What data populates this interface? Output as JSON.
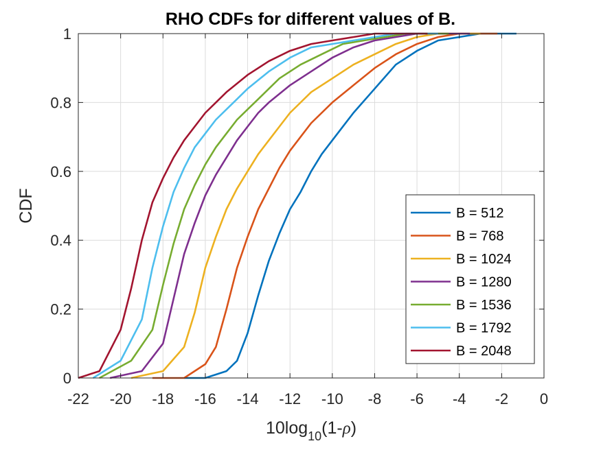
{
  "chart_data": {
    "type": "line",
    "title": "RHO CDFs for different values of B.",
    "xlabel_parts": {
      "base": "10log",
      "subscript": "10",
      "tail_open": "(1-",
      "symbol": "ρ",
      "tail_close": ")"
    },
    "ylabel": "CDF",
    "xlim": [
      -22,
      0
    ],
    "ylim": [
      0,
      1
    ],
    "xticks": [
      -22,
      -20,
      -18,
      -16,
      -14,
      -12,
      -10,
      -8,
      -6,
      -4,
      -2,
      0
    ],
    "yticks": [
      0,
      0.2,
      0.4,
      0.6,
      0.8,
      1
    ],
    "xtick_labels": [
      "-22",
      "-20",
      "-18",
      "-16",
      "-14",
      "-12",
      "-10",
      "-8",
      "-6",
      "-4",
      "-2",
      "0"
    ],
    "ytick_labels": [
      "0",
      "0.2",
      "0.4",
      "0.6",
      "0.8",
      "1"
    ],
    "grid": true,
    "legend_position": "lower-right",
    "series": [
      {
        "name": "B = 512",
        "color": "#0072BD",
        "x": [
          -17.0,
          -16.0,
          -15.0,
          -14.5,
          -14.0,
          -13.5,
          -13.0,
          -12.5,
          -12.0,
          -11.5,
          -11.0,
          -10.5,
          -10.0,
          -9.0,
          -8.0,
          -7.0,
          -6.0,
          -5.0,
          -4.0,
          -3.0,
          -2.0,
          -1.3
        ],
        "y": [
          0.0,
          0.0,
          0.02,
          0.05,
          0.13,
          0.24,
          0.34,
          0.42,
          0.49,
          0.54,
          0.6,
          0.65,
          0.69,
          0.77,
          0.84,
          0.91,
          0.95,
          0.98,
          0.99,
          1.0,
          1.0,
          1.0
        ]
      },
      {
        "name": "B = 768",
        "color": "#D95319",
        "x": [
          -18.5,
          -17.0,
          -16.0,
          -15.5,
          -15.0,
          -14.5,
          -14.0,
          -13.5,
          -13.0,
          -12.5,
          -12.0,
          -11.5,
          -11.0,
          -10.0,
          -9.0,
          -8.0,
          -7.0,
          -6.0,
          -5.0,
          -4.0,
          -3.0,
          -2.2
        ],
        "y": [
          0.0,
          0.0,
          0.04,
          0.09,
          0.2,
          0.32,
          0.41,
          0.49,
          0.55,
          0.61,
          0.66,
          0.7,
          0.74,
          0.8,
          0.85,
          0.9,
          0.94,
          0.97,
          0.99,
          1.0,
          1.0,
          1.0
        ]
      },
      {
        "name": "B = 1024",
        "color": "#EDB120",
        "x": [
          -19.5,
          -18.0,
          -17.0,
          -16.5,
          -16.0,
          -15.5,
          -15.0,
          -14.5,
          -14.0,
          -13.5,
          -13.0,
          -12.5,
          -12.0,
          -11.0,
          -10.0,
          -9.0,
          -8.0,
          -7.0,
          -6.0,
          -5.0,
          -4.0,
          -3.0
        ],
        "y": [
          0.0,
          0.02,
          0.09,
          0.19,
          0.32,
          0.41,
          0.49,
          0.55,
          0.6,
          0.65,
          0.69,
          0.73,
          0.77,
          0.83,
          0.87,
          0.91,
          0.94,
          0.97,
          0.99,
          1.0,
          1.0,
          1.0
        ]
      },
      {
        "name": "B = 1280",
        "color": "#7E2F8E",
        "x": [
          -20.5,
          -19.0,
          -18.0,
          -17.5,
          -17.0,
          -16.5,
          -16.0,
          -15.5,
          -15.0,
          -14.5,
          -14.0,
          -13.5,
          -13.0,
          -12.0,
          -11.0,
          -10.0,
          -9.0,
          -8.0,
          -7.0,
          -6.0,
          -5.0,
          -3.5
        ],
        "y": [
          0.0,
          0.02,
          0.1,
          0.23,
          0.36,
          0.45,
          0.53,
          0.59,
          0.64,
          0.69,
          0.73,
          0.77,
          0.8,
          0.85,
          0.89,
          0.93,
          0.96,
          0.98,
          0.99,
          1.0,
          1.0,
          1.0
        ]
      },
      {
        "name": "B = 1536",
        "color": "#77AC30",
        "x": [
          -21.0,
          -19.5,
          -18.5,
          -18.0,
          -17.5,
          -17.0,
          -16.5,
          -16.0,
          -15.5,
          -15.0,
          -14.5,
          -14.0,
          -13.5,
          -12.5,
          -11.5,
          -10.5,
          -9.5,
          -8.5,
          -7.5,
          -6.5,
          -5.5,
          -4.5
        ],
        "y": [
          0.0,
          0.05,
          0.14,
          0.27,
          0.39,
          0.49,
          0.56,
          0.62,
          0.67,
          0.71,
          0.75,
          0.78,
          0.81,
          0.87,
          0.91,
          0.94,
          0.97,
          0.98,
          0.99,
          1.0,
          1.0,
          1.0
        ]
      },
      {
        "name": "B = 1792",
        "color": "#4DBEEE",
        "x": [
          -21.3,
          -20.0,
          -19.0,
          -18.5,
          -18.0,
          -17.5,
          -17.0,
          -16.5,
          -16.0,
          -15.5,
          -15.0,
          -14.5,
          -14.0,
          -13.0,
          -12.0,
          -11.0,
          -10.0,
          -9.0,
          -8.0,
          -7.0,
          -6.0,
          -5.0
        ],
        "y": [
          0.0,
          0.05,
          0.17,
          0.32,
          0.44,
          0.54,
          0.61,
          0.67,
          0.71,
          0.75,
          0.78,
          0.81,
          0.84,
          0.89,
          0.93,
          0.96,
          0.97,
          0.98,
          0.99,
          1.0,
          1.0,
          1.0
        ]
      },
      {
        "name": "B = 2048",
        "color": "#A2142F",
        "x": [
          -22.0,
          -21.0,
          -20.0,
          -19.5,
          -19.0,
          -18.5,
          -18.0,
          -17.5,
          -17.0,
          -16.5,
          -16.0,
          -15.5,
          -15.0,
          -14.0,
          -13.0,
          -12.0,
          -11.0,
          -10.0,
          -9.0,
          -8.0,
          -7.0,
          -5.5
        ],
        "y": [
          0.0,
          0.02,
          0.14,
          0.26,
          0.4,
          0.51,
          0.58,
          0.64,
          0.69,
          0.73,
          0.77,
          0.8,
          0.83,
          0.88,
          0.92,
          0.95,
          0.97,
          0.98,
          0.99,
          1.0,
          1.0,
          1.0
        ]
      }
    ]
  }
}
